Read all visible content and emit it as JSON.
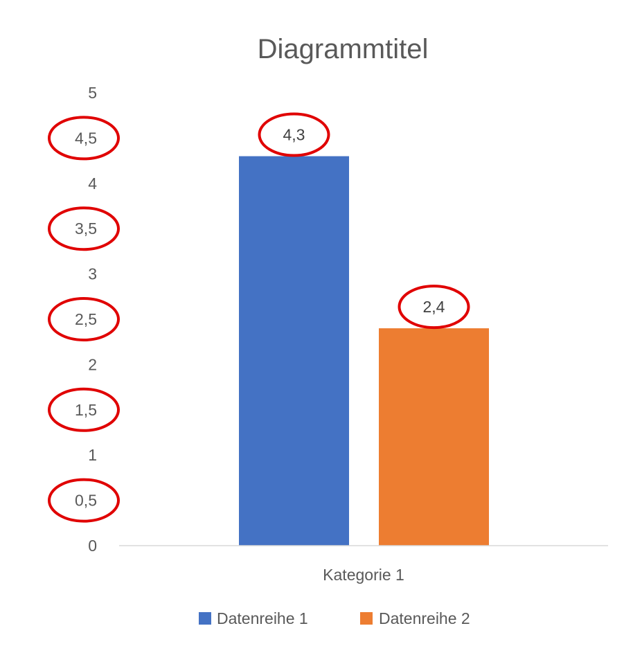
{
  "chart_data": {
    "type": "bar",
    "title": "Diagrammtitel",
    "categories": [
      "Kategorie 1"
    ],
    "series": [
      {
        "name": "Datenreihe 1",
        "values": [
          4.3
        ],
        "color": "#4472C4",
        "data_labels": [
          "4,3"
        ]
      },
      {
        "name": "Datenreihe 2",
        "values": [
          2.4
        ],
        "color": "#ED7D31",
        "data_labels": [
          "2,4"
        ]
      }
    ],
    "ylim": [
      0,
      5
    ],
    "yticks": [
      0,
      0.5,
      1,
      1.5,
      2,
      2.5,
      3,
      3.5,
      4,
      4.5,
      5
    ],
    "ytick_labels": [
      "0",
      "0,5",
      "1",
      "1,5",
      "2",
      "2,5",
      "3",
      "3,5",
      "4",
      "4,5",
      "5"
    ],
    "xlabel": "",
    "ylabel": "",
    "grid": false,
    "legend_position": "bottom",
    "highlighted_ytick_labels": [
      "0,5",
      "1,5",
      "2,5",
      "3,5",
      "4,5"
    ],
    "highlighted_data_labels": [
      "4,3",
      "2,4"
    ],
    "highlight_color": "#E00000"
  }
}
